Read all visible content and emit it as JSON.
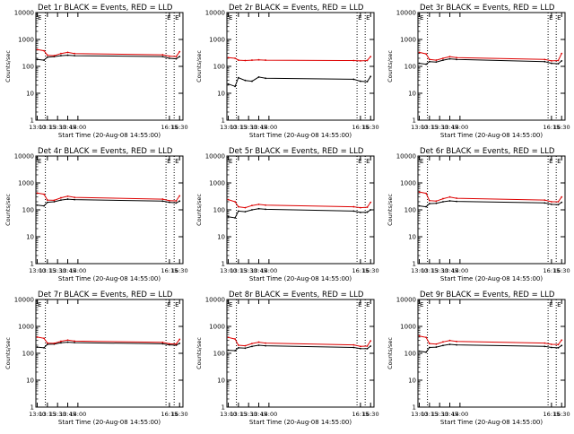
{
  "colors": {
    "events": "#000000",
    "lld": "#dd0000",
    "axis": "#000000",
    "background": "#ffffff"
  },
  "chart_data": [
    {
      "type": "line",
      "title": "Det 1r BLACK = Events, RED = LLD",
      "xlabel": "Start Time (20-Aug-08 14:55:00)",
      "ylabel": "Counts/sec",
      "yscale": "log",
      "ylim": [
        1,
        10000
      ],
      "y_tick_labels": [
        "1",
        "10",
        "100",
        "1000",
        "10000"
      ],
      "xlim": [
        "12:58",
        "16:35"
      ],
      "x_tick_labels": [
        "13:00",
        "13:15",
        "13:30",
        "13:45",
        "14:00",
        "16:15",
        "16:30"
      ],
      "x": [
        "13:00",
        "13:10",
        "13:15",
        "13:25",
        "13:35",
        "13:45",
        "13:55",
        "16:05",
        "16:15",
        "16:25",
        "16:30"
      ],
      "event_markers": [
        "13:12",
        "16:10",
        "16:22"
      ],
      "marker_label": "E",
      "series": [
        {
          "name": "Events",
          "color": "#000000",
          "values": [
            180,
            170,
            220,
            230,
            250,
            260,
            250,
            230,
            200,
            190,
            230
          ]
        },
        {
          "name": "LLD",
          "color": "#dd0000",
          "values": [
            420,
            380,
            260,
            250,
            300,
            330,
            300,
            270,
            240,
            230,
            350
          ]
        }
      ]
    },
    {
      "type": "line",
      "title": "Det 2r BLACK = Events, RED = LLD",
      "xlabel": "Start Time (20-Aug-08 14:55:00)",
      "ylabel": "Counts/sec",
      "yscale": "log",
      "ylim": [
        1,
        10000
      ],
      "y_tick_labels": [
        "1",
        "10",
        "100",
        "1000",
        "10000"
      ],
      "xlim": [
        "12:58",
        "16:35"
      ],
      "x_tick_labels": [
        "13:00",
        "13:15",
        "13:30",
        "13:45",
        "14:00",
        "16:15",
        "16:30"
      ],
      "x": [
        "13:00",
        "13:10",
        "13:15",
        "13:25",
        "13:35",
        "13:45",
        "13:55",
        "16:05",
        "16:15",
        "16:25",
        "16:30"
      ],
      "event_markers": [
        "13:12",
        "16:10",
        "16:22"
      ],
      "marker_label": "E",
      "series": [
        {
          "name": "Events",
          "color": "#000000",
          "values": [
            22,
            18,
            38,
            30,
            28,
            40,
            36,
            33,
            28,
            27,
            42
          ]
        },
        {
          "name": "LLD",
          "color": "#dd0000",
          "values": [
            210,
            200,
            170,
            165,
            170,
            175,
            170,
            165,
            160,
            165,
            230
          ]
        }
      ]
    },
    {
      "type": "line",
      "title": "Det 3r BLACK = Events, RED = LLD",
      "xlabel": "Start Time (20-Aug-08 14:55:00)",
      "ylabel": "Counts/sec",
      "yscale": "log",
      "ylim": [
        1,
        10000
      ],
      "y_tick_labels": [
        "1",
        "10",
        "100",
        "1000",
        "10000"
      ],
      "xlim": [
        "12:58",
        "16:35"
      ],
      "x_tick_labels": [
        "13:00",
        "13:15",
        "13:30",
        "13:45",
        "14:00",
        "16:15",
        "16:30"
      ],
      "x": [
        "13:00",
        "13:10",
        "13:15",
        "13:25",
        "13:35",
        "13:45",
        "13:55",
        "16:05",
        "16:15",
        "16:25",
        "16:30"
      ],
      "event_markers": [
        "13:12",
        "16:10",
        "16:22"
      ],
      "marker_label": "E",
      "series": [
        {
          "name": "Events",
          "color": "#000000",
          "values": [
            130,
            120,
            150,
            145,
            170,
            190,
            180,
            150,
            130,
            125,
            160
          ]
        },
        {
          "name": "LLD",
          "color": "#dd0000",
          "values": [
            330,
            290,
            180,
            170,
            200,
            230,
            210,
            180,
            160,
            165,
            300
          ]
        }
      ]
    },
    {
      "type": "line",
      "title": "Det 4r BLACK = Events, RED = LLD",
      "xlabel": "Start Time (20-Aug-08 14:55:00)",
      "ylabel": "Counts/sec",
      "yscale": "log",
      "ylim": [
        1,
        10000
      ],
      "y_tick_labels": [
        "1",
        "10",
        "100",
        "1000",
        "10000"
      ],
      "xlim": [
        "12:58",
        "16:35"
      ],
      "x_tick_labels": [
        "13:00",
        "13:15",
        "13:30",
        "13:45",
        "14:00",
        "16:15",
        "16:30"
      ],
      "x": [
        "13:00",
        "13:10",
        "13:15",
        "13:25",
        "13:35",
        "13:45",
        "13:55",
        "16:05",
        "16:15",
        "16:25",
        "16:30"
      ],
      "event_markers": [
        "13:12",
        "16:10",
        "16:22"
      ],
      "marker_label": "E",
      "series": [
        {
          "name": "Events",
          "color": "#000000",
          "values": [
            150,
            140,
            190,
            200,
            230,
            250,
            240,
            210,
            190,
            180,
            210
          ]
        },
        {
          "name": "LLD",
          "color": "#dd0000",
          "values": [
            420,
            380,
            230,
            225,
            280,
            320,
            290,
            250,
            220,
            215,
            330
          ]
        }
      ]
    },
    {
      "type": "line",
      "title": "Det 5r BLACK = Events, RED = LLD",
      "xlabel": "Start Time (20-Aug-08 14:55:00)",
      "ylabel": "Counts/sec",
      "yscale": "log",
      "ylim": [
        1,
        10000
      ],
      "y_tick_labels": [
        "1",
        "10",
        "100",
        "1000",
        "10000"
      ],
      "xlim": [
        "12:58",
        "16:35"
      ],
      "x_tick_labels": [
        "13:00",
        "13:15",
        "13:30",
        "13:45",
        "14:00",
        "16:15",
        "16:30"
      ],
      "x": [
        "13:00",
        "13:10",
        "13:15",
        "13:25",
        "13:35",
        "13:45",
        "13:55",
        "16:05",
        "16:15",
        "16:25",
        "16:30"
      ],
      "event_markers": [
        "13:12",
        "16:10",
        "16:22"
      ],
      "marker_label": "E",
      "series": [
        {
          "name": "Events",
          "color": "#000000",
          "values": [
            55,
            50,
            90,
            85,
            100,
            110,
            105,
            90,
            80,
            82,
            100
          ]
        },
        {
          "name": "LLD",
          "color": "#dd0000",
          "values": [
            240,
            200,
            130,
            120,
            145,
            160,
            150,
            130,
            120,
            125,
            190
          ]
        }
      ]
    },
    {
      "type": "line",
      "title": "Det 6r BLACK = Events, RED = LLD",
      "xlabel": "Start Time (20-Aug-08 14:55:00)",
      "ylabel": "Counts/sec",
      "yscale": "log",
      "ylim": [
        1,
        10000
      ],
      "y_tick_labels": [
        "1",
        "10",
        "100",
        "1000",
        "10000"
      ],
      "xlim": [
        "12:58",
        "16:35"
      ],
      "x_tick_labels": [
        "13:00",
        "13:15",
        "13:30",
        "13:45",
        "14:00",
        "16:15",
        "16:30"
      ],
      "x": [
        "13:00",
        "13:10",
        "13:15",
        "13:25",
        "13:35",
        "13:45",
        "13:55",
        "16:05",
        "16:15",
        "16:25",
        "16:30"
      ],
      "event_markers": [
        "13:12",
        "16:10",
        "16:22"
      ],
      "marker_label": "E",
      "series": [
        {
          "name": "Events",
          "color": "#000000",
          "values": [
            140,
            130,
            170,
            175,
            200,
            215,
            205,
            180,
            160,
            155,
            190
          ]
        },
        {
          "name": "LLD",
          "color": "#dd0000",
          "values": [
            460,
            410,
            220,
            210,
            260,
            300,
            270,
            230,
            200,
            200,
            300
          ]
        }
      ]
    },
    {
      "type": "line",
      "title": "Det 7r BLACK = Events, RED = LLD",
      "xlabel": "Start Time (20-Aug-08 14:55:00)",
      "ylabel": "Counts/sec",
      "yscale": "log",
      "ylim": [
        1,
        10000
      ],
      "y_tick_labels": [
        "1",
        "10",
        "100",
        "1000",
        "10000"
      ],
      "xlim": [
        "12:58",
        "16:35"
      ],
      "x_tick_labels": [
        "13:00",
        "13:15",
        "13:30",
        "13:45",
        "14:00",
        "16:15",
        "16:30"
      ],
      "x": [
        "13:00",
        "13:10",
        "13:15",
        "13:25",
        "13:35",
        "13:45",
        "13:55",
        "16:05",
        "16:15",
        "16:25",
        "16:30"
      ],
      "event_markers": [
        "13:12",
        "16:10",
        "16:22"
      ],
      "marker_label": "E",
      "series": [
        {
          "name": "Events",
          "color": "#000000",
          "values": [
            170,
            160,
            215,
            220,
            245,
            260,
            250,
            225,
            205,
            200,
            235
          ]
        },
        {
          "name": "LLD",
          "color": "#dd0000",
          "values": [
            400,
            360,
            240,
            235,
            280,
            310,
            285,
            255,
            225,
            220,
            330
          ]
        }
      ]
    },
    {
      "type": "line",
      "title": "Det 8r BLACK = Events, RED = LLD",
      "xlabel": "Start Time (20-Aug-08 14:55:00)",
      "ylabel": "Counts/sec",
      "yscale": "log",
      "ylim": [
        1,
        10000
      ],
      "y_tick_labels": [
        "1",
        "10",
        "100",
        "1000",
        "10000"
      ],
      "xlim": [
        "12:58",
        "16:35"
      ],
      "x_tick_labels": [
        "13:00",
        "13:15",
        "13:30",
        "13:45",
        "14:00",
        "16:15",
        "16:30"
      ],
      "x": [
        "13:00",
        "13:10",
        "13:15",
        "13:25",
        "13:35",
        "13:45",
        "13:55",
        "16:05",
        "16:15",
        "16:25",
        "16:30"
      ],
      "event_markers": [
        "13:12",
        "16:10",
        "16:22"
      ],
      "marker_label": "E",
      "series": [
        {
          "name": "Events",
          "color": "#000000",
          "values": [
            130,
            125,
            160,
            155,
            180,
            200,
            190,
            165,
            150,
            148,
            185
          ]
        },
        {
          "name": "LLD",
          "color": "#dd0000",
          "values": [
            390,
            340,
            200,
            190,
            230,
            260,
            240,
            205,
            180,
            185,
            290
          ]
        }
      ]
    },
    {
      "type": "line",
      "title": "Det 9r BLACK = Events, RED = LLD",
      "xlabel": "Start Time (20-Aug-08 14:55:00)",
      "ylabel": "Counts/sec",
      "yscale": "log",
      "ylim": [
        1,
        10000
      ],
      "y_tick_labels": [
        "1",
        "10",
        "100",
        "1000",
        "10000"
      ],
      "xlim": [
        "12:58",
        "16:35"
      ],
      "x_tick_labels": [
        "13:00",
        "13:15",
        "13:30",
        "13:45",
        "14:00",
        "16:15",
        "16:30"
      ],
      "x": [
        "13:00",
        "13:10",
        "13:15",
        "13:25",
        "13:35",
        "13:45",
        "13:55",
        "16:05",
        "16:15",
        "16:25",
        "16:30"
      ],
      "event_markers": [
        "13:12",
        "16:10",
        "16:22"
      ],
      "marker_label": "E",
      "series": [
        {
          "name": "Events",
          "color": "#000000",
          "values": [
            120,
            110,
            165,
            170,
            195,
            215,
            205,
            180,
            165,
            160,
            195
          ]
        },
        {
          "name": "LLD",
          "color": "#dd0000",
          "values": [
            440,
            390,
            230,
            220,
            265,
            300,
            275,
            240,
            215,
            210,
            310
          ]
        }
      ]
    }
  ]
}
